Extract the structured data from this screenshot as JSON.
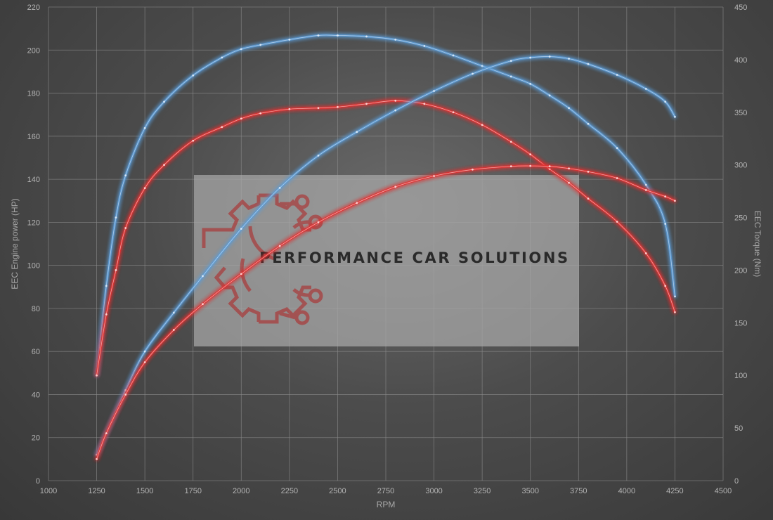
{
  "chart_data": {
    "type": "line",
    "title": "",
    "xlabel": "RPM",
    "ylabel": "EEC Engine power (HP)",
    "y2label": "EEC Torque (Nm)",
    "xlim": [
      1000,
      4500
    ],
    "ylim": [
      0,
      220
    ],
    "y2lim": [
      0,
      450
    ],
    "x_ticks": [
      1000,
      1250,
      1500,
      1750,
      2000,
      2250,
      2500,
      2750,
      3000,
      3250,
      3500,
      3750,
      4000,
      4250,
      4500
    ],
    "y_ticks": [
      0,
      20,
      40,
      60,
      80,
      100,
      120,
      140,
      160,
      180,
      200,
      220
    ],
    "y2_ticks": [
      0,
      50,
      100,
      150,
      200,
      250,
      300,
      350,
      400,
      450
    ],
    "grid": true,
    "legend": "none",
    "series": [
      {
        "axis": "right",
        "color": "#5b9bd5",
        "x": [
          1250,
          1300,
          1350,
          1400,
          1500,
          1600,
          1750,
          1900,
          2000,
          2100,
          2250,
          2400,
          2500,
          2650,
          2800,
          2950,
          3100,
          3250,
          3400,
          3500,
          3600,
          3700,
          3800,
          3950,
          4100,
          4200,
          4250
        ],
        "y": [
          100,
          185,
          250,
          290,
          335,
          360,
          385,
          402,
          410,
          414,
          419,
          423,
          423,
          422,
          419,
          413,
          404,
          394,
          384,
          377,
          366,
          354,
          339,
          316,
          281,
          244,
          175
        ]
      },
      {
        "axis": "right",
        "color": "#e03232",
        "x": [
          1250,
          1300,
          1350,
          1400,
          1500,
          1600,
          1750,
          1900,
          2000,
          2100,
          2250,
          2400,
          2500,
          2650,
          2800,
          2950,
          3100,
          3250,
          3400,
          3500,
          3600,
          3700,
          3800,
          3950,
          4100,
          4200,
          4250
        ],
        "y": [
          100,
          158,
          200,
          240,
          278,
          300,
          323,
          336,
          344,
          349,
          353,
          354,
          355,
          358,
          361,
          358,
          350,
          338,
          322,
          310,
          296,
          283,
          268,
          246,
          216,
          185,
          160
        ]
      },
      {
        "axis": "left",
        "color": "#5b9bd5",
        "x": [
          1250,
          1300,
          1400,
          1500,
          1650,
          1800,
          2000,
          2200,
          2400,
          2600,
          2800,
          3000,
          3200,
          3400,
          3500,
          3600,
          3700,
          3800,
          3950,
          4100,
          4200,
          4250
        ],
        "y": [
          12,
          22,
          42,
          60,
          78,
          95,
          117,
          136,
          151,
          162,
          172,
          181,
          189,
          195,
          196.5,
          197,
          196,
          193.5,
          188.5,
          182,
          176,
          169
        ]
      },
      {
        "axis": "left",
        "color": "#e03232",
        "x": [
          1250,
          1300,
          1400,
          1500,
          1650,
          1800,
          2000,
          2200,
          2400,
          2600,
          2800,
          3000,
          3200,
          3400,
          3500,
          3600,
          3700,
          3800,
          3950,
          4100,
          4200,
          4250
        ],
        "y": [
          10,
          22,
          40,
          55,
          70,
          82,
          96,
          109,
          120,
          129,
          136.5,
          141.5,
          144.5,
          146,
          146.2,
          146,
          145,
          143.5,
          140.5,
          135,
          132,
          130
        ]
      }
    ]
  },
  "watermark": {
    "text": "PERFORMANCE CAR SOLUTIONS",
    "logo": "gear-circuit-logo"
  }
}
